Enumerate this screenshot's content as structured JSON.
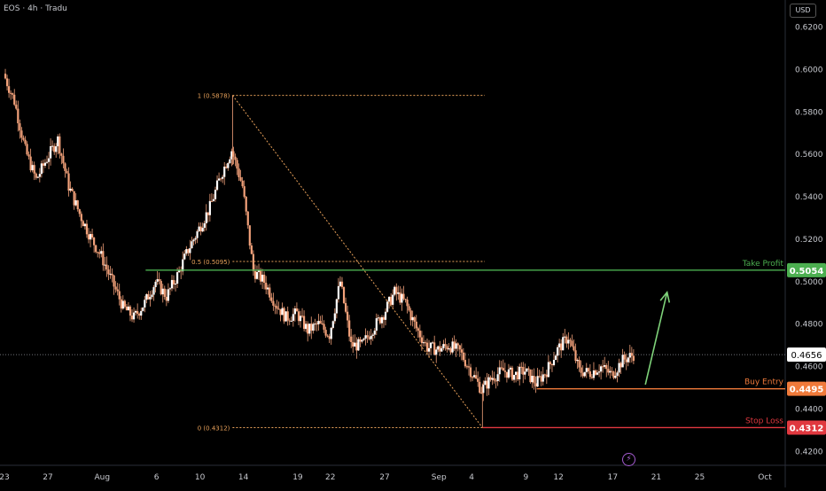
{
  "header": {
    "symbol_label": "EOS · 4h · Tradu"
  },
  "currency_button": "USD",
  "colors": {
    "background": "#000000",
    "candle": "#f2a17a",
    "fib_line": "#e8a15a",
    "take_profit": "#4caf50",
    "buy_entry": "#f07a3a",
    "stop_loss": "#e0383f",
    "arrow": "#7fd37a",
    "current_price": "#ffffff"
  },
  "chart_data": {
    "type": "candlestick",
    "symbol": "EOS",
    "interval": "4h",
    "y_axis": {
      "min": 0.41,
      "max": 0.625,
      "ticks": [
        "0.6200",
        "0.6000",
        "0.5800",
        "0.5600",
        "0.5400",
        "0.5200",
        "0.5000",
        "0.4800",
        "0.4600",
        "0.4400",
        "0.4200"
      ]
    },
    "x_axis": {
      "ticks": [
        {
          "label": "23",
          "date": "2024-07-23"
        },
        {
          "label": "27",
          "date": "2024-07-27"
        },
        {
          "label": "Aug",
          "date": "2024-08-01"
        },
        {
          "label": "6",
          "date": "2024-08-06"
        },
        {
          "label": "10",
          "date": "2024-08-10"
        },
        {
          "label": "14",
          "date": "2024-08-14"
        },
        {
          "label": "19",
          "date": "2024-08-19"
        },
        {
          "label": "22",
          "date": "2024-08-22"
        },
        {
          "label": "27",
          "date": "2024-08-27"
        },
        {
          "label": "Sep",
          "date": "2024-09-01"
        },
        {
          "label": "4",
          "date": "2024-09-04"
        },
        {
          "label": "9",
          "date": "2024-09-09"
        },
        {
          "label": "12",
          "date": "2024-09-12"
        },
        {
          "label": "17",
          "date": "2024-09-17"
        },
        {
          "label": "21",
          "date": "2024-09-21"
        },
        {
          "label": "25",
          "date": "2024-09-25"
        },
        {
          "label": "Oct",
          "date": "2024-10-01"
        }
      ]
    },
    "price_path": [
      [
        "2024-07-23",
        0.598
      ],
      [
        "2024-07-24",
        0.585
      ],
      [
        "2024-07-25",
        0.562
      ],
      [
        "2024-07-26",
        0.548
      ],
      [
        "2024-07-27",
        0.558
      ],
      [
        "2024-07-28",
        0.567
      ],
      [
        "2024-07-29",
        0.545
      ],
      [
        "2024-07-30",
        0.532
      ],
      [
        "2024-07-31",
        0.521
      ],
      [
        "2024-08-01",
        0.512
      ],
      [
        "2024-08-02",
        0.5
      ],
      [
        "2024-08-03",
        0.488
      ],
      [
        "2024-08-04",
        0.483
      ],
      [
        "2024-08-05",
        0.49
      ],
      [
        "2024-08-06",
        0.5
      ],
      [
        "2024-08-07",
        0.493
      ],
      [
        "2024-08-08",
        0.503
      ],
      [
        "2024-08-09",
        0.515
      ],
      [
        "2024-08-10",
        0.525
      ],
      [
        "2024-08-11",
        0.535
      ],
      [
        "2024-08-12",
        0.55
      ],
      [
        "2024-08-13",
        0.562
      ],
      [
        "2024-08-14",
        0.545
      ],
      [
        "2024-08-15",
        0.505
      ],
      [
        "2024-08-16",
        0.5
      ],
      [
        "2024-08-17",
        0.49
      ],
      [
        "2024-08-18",
        0.483
      ],
      [
        "2024-08-19",
        0.485
      ],
      [
        "2024-08-20",
        0.477
      ],
      [
        "2024-08-21",
        0.48
      ],
      [
        "2024-08-22",
        0.475
      ],
      [
        "2024-08-23",
        0.5
      ],
      [
        "2024-08-24",
        0.47
      ],
      [
        "2024-08-25",
        0.47
      ],
      [
        "2024-08-26",
        0.478
      ],
      [
        "2024-08-27",
        0.485
      ],
      [
        "2024-08-28",
        0.495
      ],
      [
        "2024-08-29",
        0.49
      ],
      [
        "2024-08-30",
        0.478
      ],
      [
        "2024-08-31",
        0.469
      ],
      [
        "2024-09-01",
        0.468
      ],
      [
        "2024-09-02",
        0.47
      ],
      [
        "2024-09-03",
        0.467
      ],
      [
        "2024-09-04",
        0.458
      ],
      [
        "2024-09-05",
        0.449
      ],
      [
        "2024-09-06",
        0.455
      ],
      [
        "2024-09-07",
        0.458
      ],
      [
        "2024-09-08",
        0.456
      ],
      [
        "2024-09-09",
        0.458
      ],
      [
        "2024-09-10",
        0.452
      ],
      [
        "2024-09-11",
        0.458
      ],
      [
        "2024-09-12",
        0.468
      ],
      [
        "2024-09-13",
        0.474
      ],
      [
        "2024-09-14",
        0.458
      ],
      [
        "2024-09-15",
        0.457
      ],
      [
        "2024-09-16",
        0.46
      ],
      [
        "2024-09-17",
        0.456
      ],
      [
        "2024-09-18",
        0.463
      ],
      [
        "2024-09-19",
        0.4656
      ]
    ],
    "annotations": {
      "fib_levels": [
        {
          "label": "1 (0.5878)",
          "price": 0.5878
        },
        {
          "label": "0.5 (0.5095)",
          "price": 0.5095
        },
        {
          "label": "0 (0.4312)",
          "price": 0.4312
        }
      ],
      "fib_anchors": [
        [
          "2024-08-13",
          0.5878
        ],
        [
          "2024-09-05",
          0.4312
        ]
      ],
      "levels": [
        {
          "name": "Take Profit",
          "price": 0.5054,
          "label": "0.5054",
          "color": "#4caf50",
          "start": "2024-08-05"
        },
        {
          "name": "Buy Entry",
          "price": 0.4495,
          "label": "0.4495",
          "color": "#f07a3a",
          "start": "2024-09-10"
        },
        {
          "name": "Stop Loss",
          "price": 0.4312,
          "label": "0.4312",
          "color": "#e0383f",
          "start": "2024-09-05"
        }
      ],
      "current_price": {
        "price": 0.4656,
        "label": "0.4656"
      },
      "arrow": {
        "from": [
          "2024-09-20",
          0.4515
        ],
        "to": [
          "2024-09-22",
          0.495
        ]
      }
    }
  }
}
